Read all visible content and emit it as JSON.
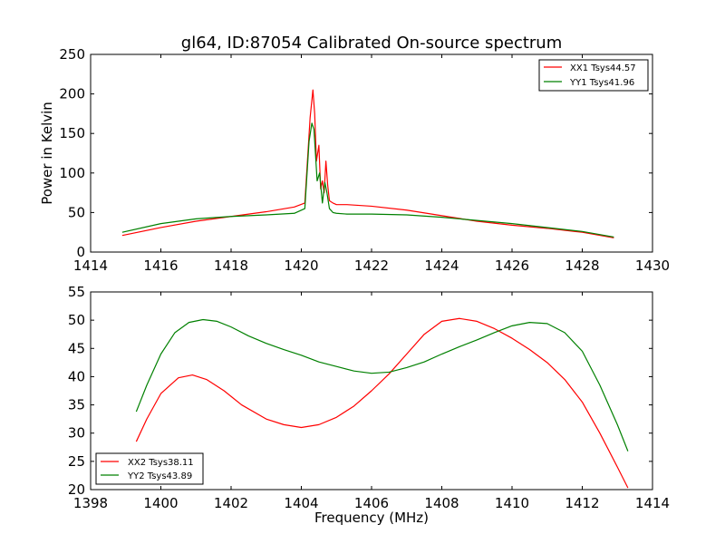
{
  "chart_data": [
    {
      "type": "line",
      "title": "gl64, ID:87054 Calibrated On-source spectrum",
      "xlabel": "",
      "ylabel": "Power in Kelvin",
      "xlim": [
        1414,
        1430
      ],
      "ylim": [
        0,
        250
      ],
      "xticks": [
        "1414",
        "1416",
        "1418",
        "1420",
        "1422",
        "1424",
        "1426",
        "1428",
        "1430"
      ],
      "yticks": [
        "0",
        "50",
        "100",
        "150",
        "200",
        "250"
      ],
      "grid": false,
      "legend_position": "top-right",
      "series": [
        {
          "name": "XX1 Tsys44.57",
          "color": "#ff0000",
          "x": [
            1414.9,
            1416.0,
            1417.0,
            1418.0,
            1419.0,
            1419.8,
            1420.1,
            1420.25,
            1420.33,
            1420.38,
            1420.43,
            1420.5,
            1420.55,
            1420.6,
            1420.65,
            1420.7,
            1420.75,
            1420.8,
            1420.9,
            1421.0,
            1421.3,
            1422.0,
            1423.0,
            1424.0,
            1425.0,
            1426.0,
            1427.0,
            1428.0,
            1428.9
          ],
          "y": [
            21,
            31,
            39,
            45,
            51,
            57,
            62,
            170,
            205,
            175,
            115,
            135,
            80,
            90,
            75,
            115,
            85,
            65,
            62,
            60,
            60,
            58,
            53,
            46,
            39,
            34,
            30,
            25,
            18
          ]
        },
        {
          "name": "YY1 Tsys41.96",
          "color": "#008000",
          "x": [
            1414.9,
            1416.0,
            1417.0,
            1418.0,
            1419.0,
            1419.8,
            1420.1,
            1420.22,
            1420.3,
            1420.36,
            1420.45,
            1420.52,
            1420.6,
            1420.67,
            1420.73,
            1420.8,
            1420.9,
            1421.0,
            1421.3,
            1422.0,
            1423.0,
            1424.0,
            1425.0,
            1426.0,
            1427.0,
            1428.0,
            1428.9
          ],
          "y": [
            25,
            36,
            42,
            45,
            47,
            49,
            55,
            140,
            163,
            155,
            90,
            100,
            62,
            88,
            75,
            55,
            50,
            49,
            48,
            48,
            47,
            44,
            40,
            36,
            31,
            26,
            19
          ]
        }
      ]
    },
    {
      "type": "line",
      "title": "",
      "xlabel": "Frequency (MHz)",
      "ylabel": "",
      "xlim": [
        1398,
        1414
      ],
      "ylim": [
        20,
        55
      ],
      "xticks": [
        "1398",
        "1400",
        "1402",
        "1404",
        "1406",
        "1408",
        "1410",
        "1412",
        "1414"
      ],
      "yticks": [
        "20",
        "25",
        "30",
        "35",
        "40",
        "45",
        "50",
        "55"
      ],
      "grid": false,
      "legend_position": "bottom-left",
      "series": [
        {
          "name": "XX2 Tsys38.11",
          "color": "#ff0000",
          "x": [
            1399.3,
            1399.6,
            1400.0,
            1400.5,
            1400.9,
            1401.3,
            1401.8,
            1402.3,
            1403.0,
            1403.5,
            1404.0,
            1404.5,
            1405.0,
            1405.5,
            1406.0,
            1406.5,
            1407.0,
            1407.5,
            1408.0,
            1408.5,
            1409.0,
            1409.5,
            1410.0,
            1410.5,
            1411.0,
            1411.5,
            1412.0,
            1412.5,
            1413.0,
            1413.3
          ],
          "y": [
            28.5,
            32.5,
            37.0,
            39.8,
            40.3,
            39.5,
            37.5,
            35.0,
            32.5,
            31.5,
            31.0,
            31.5,
            32.8,
            34.8,
            37.5,
            40.5,
            44.0,
            47.5,
            49.8,
            50.3,
            49.8,
            48.5,
            46.8,
            44.8,
            42.5,
            39.5,
            35.5,
            30.0,
            24.0,
            20.3
          ]
        },
        {
          "name": "YY2 Tsys43.89",
          "color": "#008000",
          "x": [
            1399.3,
            1399.6,
            1400.0,
            1400.4,
            1400.8,
            1401.2,
            1401.6,
            1402.0,
            1402.5,
            1403.0,
            1403.5,
            1404.0,
            1404.5,
            1405.0,
            1405.5,
            1406.0,
            1406.5,
            1407.0,
            1407.5,
            1408.0,
            1408.5,
            1409.0,
            1409.5,
            1410.0,
            1410.5,
            1411.0,
            1411.5,
            1412.0,
            1412.5,
            1413.0,
            1413.3
          ],
          "y": [
            33.8,
            38.5,
            44.0,
            47.8,
            49.6,
            50.1,
            49.8,
            48.8,
            47.2,
            45.9,
            44.8,
            43.8,
            42.6,
            41.8,
            41.0,
            40.6,
            40.8,
            41.6,
            42.6,
            44.0,
            45.3,
            46.5,
            47.8,
            49.0,
            49.6,
            49.4,
            47.8,
            44.5,
            38.5,
            31.5,
            26.8
          ]
        }
      ]
    }
  ]
}
